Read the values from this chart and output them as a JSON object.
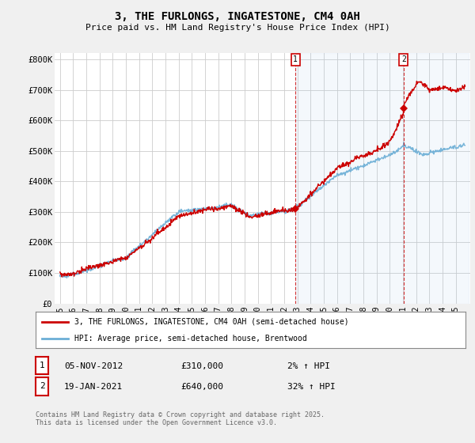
{
  "title": "3, THE FURLONGS, INGATESTONE, CM4 0AH",
  "subtitle": "Price paid vs. HM Land Registry's House Price Index (HPI)",
  "y_ticks": [
    0,
    100000,
    200000,
    300000,
    400000,
    500000,
    600000,
    700000,
    800000
  ],
  "y_tick_labels": [
    "£0",
    "£100K",
    "£200K",
    "£300K",
    "£400K",
    "£500K",
    "£600K",
    "£700K",
    "£800K"
  ],
  "ylim": [
    0,
    820000
  ],
  "x_start_year": 1995,
  "x_end_year": 2026,
  "x_tick_years": [
    1995,
    1996,
    1997,
    1998,
    1999,
    2000,
    2001,
    2002,
    2003,
    2004,
    2005,
    2006,
    2007,
    2008,
    2009,
    2010,
    2011,
    2012,
    2013,
    2014,
    2015,
    2016,
    2017,
    2018,
    2019,
    2020,
    2021,
    2022,
    2023,
    2024,
    2025
  ],
  "hpi_color": "#6baed6",
  "price_color": "#cc0000",
  "shade_color": "#ddeeff",
  "annotation1_year": 2012.85,
  "annotation1_price": 310000,
  "annotation1_label": "1",
  "annotation2_year": 2021.05,
  "annotation2_price": 640000,
  "annotation2_label": "2",
  "legend_line1": "3, THE FURLONGS, INGATESTONE, CM4 0AH (semi-detached house)",
  "legend_line2": "HPI: Average price, semi-detached house, Brentwood",
  "note1_label": "1",
  "note1_date": "05-NOV-2012",
  "note1_price": "£310,000",
  "note1_hpi": "2% ↑ HPI",
  "note2_label": "2",
  "note2_date": "19-JAN-2021",
  "note2_price": "£640,000",
  "note2_hpi": "32% ↑ HPI",
  "footer": "Contains HM Land Registry data © Crown copyright and database right 2025.\nThis data is licensed under the Open Government Licence v3.0.",
  "bg_color": "#f0f0f0",
  "plot_bg_color": "#ffffff",
  "grid_color": "#cccccc"
}
